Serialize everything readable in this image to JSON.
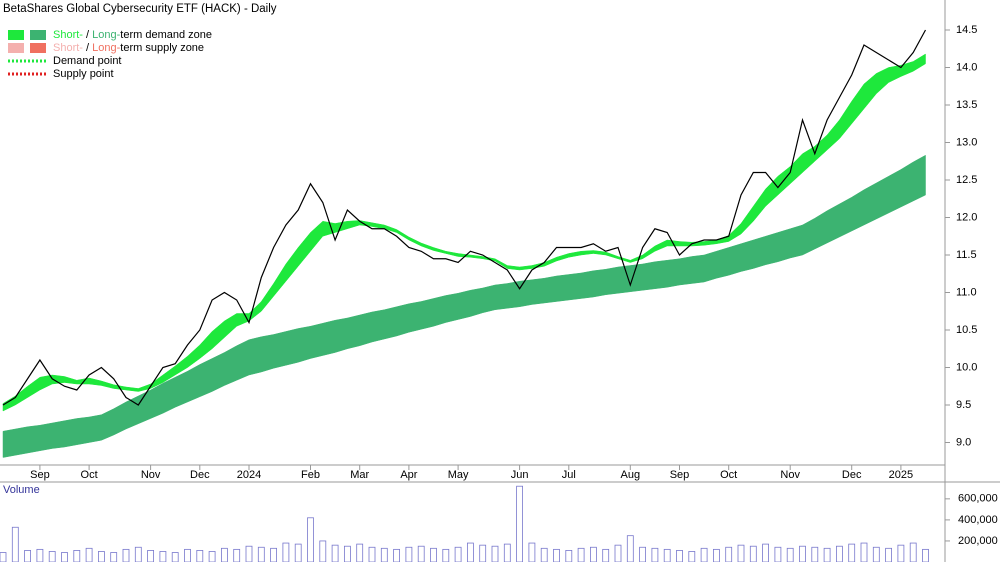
{
  "chart_data": {
    "type": "line",
    "title": "BetaShares Global Cybersecurity ETF (HACK) - Daily",
    "categories": [
      null,
      null,
      null,
      "Sep",
      null,
      null,
      null,
      "Oct",
      null,
      null,
      null,
      null,
      "Nov",
      null,
      null,
      null,
      "Dec",
      null,
      null,
      null,
      "2024",
      null,
      null,
      null,
      null,
      "Feb",
      null,
      null,
      null,
      "Mar",
      null,
      null,
      null,
      "Apr",
      null,
      null,
      null,
      "May",
      null,
      null,
      null,
      null,
      "Jun",
      null,
      null,
      null,
      "Jul",
      null,
      null,
      null,
      null,
      "Aug",
      null,
      null,
      null,
      "Sep",
      null,
      null,
      null,
      "Oct",
      null,
      null,
      null,
      null,
      "Nov",
      null,
      null,
      null,
      null,
      "Dec",
      null,
      null,
      null,
      "2025",
      null,
      null
    ],
    "values": [
      9.5,
      9.6,
      9.85,
      10.1,
      9.85,
      9.75,
      9.7,
      9.9,
      10.0,
      9.85,
      9.6,
      9.5,
      9.75,
      10.0,
      10.05,
      10.3,
      10.5,
      10.9,
      11.0,
      10.9,
      10.6,
      11.2,
      11.6,
      11.9,
      12.1,
      12.45,
      12.2,
      11.7,
      12.1,
      11.95,
      11.85,
      11.85,
      11.75,
      11.6,
      11.55,
      11.45,
      11.45,
      11.4,
      11.55,
      11.5,
      11.4,
      11.3,
      11.05,
      11.3,
      11.4,
      11.6,
      11.6,
      11.6,
      11.65,
      11.55,
      11.6,
      11.1,
      11.6,
      11.85,
      11.8,
      11.5,
      11.65,
      11.7,
      11.7,
      11.75,
      12.3,
      12.6,
      12.6,
      12.4,
      12.6,
      13.3,
      12.85,
      13.3,
      13.6,
      13.9,
      14.3,
      14.2,
      14.1,
      14.0,
      14.2,
      14.5
    ],
    "color": "#000000",
    "bands": [
      {
        "color": "#3cb371",
        "lower": [
          8.8,
          8.83,
          8.86,
          8.89,
          8.92,
          8.94,
          8.97,
          9.0,
          9.03,
          9.1,
          9.18,
          9.25,
          9.32,
          9.39,
          9.47,
          9.54,
          9.61,
          9.68,
          9.76,
          9.83,
          9.9,
          9.94,
          9.99,
          10.03,
          10.07,
          10.12,
          10.16,
          10.2,
          10.25,
          10.29,
          10.34,
          10.38,
          10.42,
          10.47,
          10.51,
          10.55,
          10.6,
          10.64,
          10.68,
          10.73,
          10.77,
          10.79,
          10.81,
          10.84,
          10.86,
          10.88,
          10.9,
          10.92,
          10.94,
          10.97,
          10.99,
          11.01,
          11.03,
          11.05,
          11.07,
          11.1,
          11.12,
          11.14,
          11.19,
          11.23,
          11.28,
          11.32,
          11.37,
          11.41,
          11.46,
          11.5,
          11.58,
          11.66,
          11.74,
          11.82,
          11.9,
          11.98,
          12.06,
          12.14,
          12.22,
          12.3
        ],
        "upper": [
          9.15,
          9.18,
          9.21,
          9.23,
          9.26,
          9.29,
          9.32,
          9.34,
          9.37,
          9.45,
          9.54,
          9.62,
          9.7,
          9.79,
          9.87,
          9.95,
          10.04,
          10.12,
          10.2,
          10.29,
          10.37,
          10.41,
          10.44,
          10.48,
          10.52,
          10.55,
          10.59,
          10.63,
          10.66,
          10.7,
          10.74,
          10.77,
          10.81,
          10.85,
          10.88,
          10.92,
          10.96,
          10.99,
          11.03,
          11.06,
          11.1,
          11.12,
          11.15,
          11.17,
          11.19,
          11.22,
          11.24,
          11.26,
          11.29,
          11.31,
          11.34,
          11.36,
          11.38,
          11.41,
          11.43,
          11.45,
          11.48,
          11.5,
          11.55,
          11.6,
          11.65,
          11.7,
          11.75,
          11.8,
          11.85,
          11.9,
          11.99,
          12.09,
          12.18,
          12.27,
          12.37,
          12.46,
          12.55,
          12.64,
          12.74,
          12.83
        ]
      },
      {
        "color": "#1ee83c",
        "lower": [
          9.42,
          9.5,
          9.6,
          9.7,
          9.78,
          9.8,
          9.78,
          9.78,
          9.76,
          9.72,
          9.7,
          9.68,
          9.72,
          9.8,
          9.9,
          10.0,
          10.12,
          10.25,
          10.4,
          10.55,
          10.62,
          10.75,
          10.95,
          11.15,
          11.35,
          11.55,
          11.75,
          11.8,
          11.85,
          11.9,
          11.88,
          11.85,
          11.8,
          11.7,
          11.62,
          11.56,
          11.52,
          11.48,
          11.47,
          11.45,
          11.42,
          11.32,
          11.3,
          11.32,
          11.35,
          11.42,
          11.47,
          11.5,
          11.52,
          11.5,
          11.45,
          11.4,
          11.45,
          11.55,
          11.62,
          11.62,
          11.62,
          11.63,
          11.65,
          11.68,
          11.78,
          11.95,
          12.15,
          12.3,
          12.45,
          12.6,
          12.75,
          12.9,
          13.05,
          13.25,
          13.45,
          13.65,
          13.8,
          13.88,
          13.95,
          14.05
        ],
        "upper": [
          9.52,
          9.62,
          9.75,
          9.87,
          9.9,
          9.88,
          9.83,
          9.86,
          9.82,
          9.77,
          9.74,
          9.72,
          9.78,
          9.9,
          10.02,
          10.15,
          10.3,
          10.48,
          10.62,
          10.72,
          10.72,
          10.88,
          11.12,
          11.38,
          11.6,
          11.8,
          11.95,
          11.92,
          11.95,
          11.96,
          11.93,
          11.9,
          11.84,
          11.74,
          11.66,
          11.6,
          11.55,
          11.52,
          11.5,
          11.48,
          11.45,
          11.36,
          11.34,
          11.36,
          11.4,
          11.47,
          11.52,
          11.55,
          11.56,
          11.54,
          11.48,
          11.43,
          11.5,
          11.62,
          11.7,
          11.68,
          11.67,
          11.68,
          11.7,
          11.76,
          11.92,
          12.15,
          12.38,
          12.55,
          12.68,
          12.85,
          12.95,
          13.1,
          13.3,
          13.55,
          13.78,
          13.92,
          14.0,
          14.03,
          14.08,
          14.18
        ]
      }
    ],
    "ylim": [
      8.7,
      14.9
    ],
    "yticks": [
      {
        "value": 9,
        "label": "9.0"
      },
      9.5,
      {
        "value": 10,
        "label": "10.0"
      },
      10.5,
      {
        "value": 11,
        "label": "11.0"
      },
      11.5,
      {
        "value": 12,
        "label": "12.0"
      },
      12.5,
      {
        "value": 13,
        "label": "13.0"
      },
      13.5,
      {
        "value": 14,
        "label": "14.0"
      },
      14.5
    ],
    "legend": [
      {
        "swatches": [
          "#1ee83c",
          "#3cb371"
        ],
        "parts": [
          {
            "text": "Short-",
            "color": "#1ee83c"
          },
          {
            "text": " / "
          },
          {
            "text": "Long-",
            "color": "#3cb371"
          },
          {
            "text": "term demand zone"
          }
        ]
      },
      {
        "swatches": [
          "#f4b0ae",
          "#f07060"
        ],
        "parts": [
          {
            "text": "Short-",
            "color": "#f4b0ae"
          },
          {
            "text": " / "
          },
          {
            "text": "Long-",
            "color": "#f07060"
          },
          {
            "text": "term supply zone"
          }
        ]
      },
      {
        "dotted": "#1ee83c",
        "parts": [
          {
            "text": "Demand point"
          }
        ]
      },
      {
        "dotted": "#e02020",
        "parts": [
          {
            "text": "Supply point"
          }
        ]
      }
    ],
    "volume": {
      "title": "Volume",
      "color": "#7777cc",
      "ylim": [
        0,
        760000
      ],
      "yticks": [
        {
          "value": 200000,
          "label": "200,000"
        },
        {
          "value": 400000,
          "label": "400,000"
        },
        {
          "value": 600000,
          "label": "600,000"
        }
      ],
      "values": [
        90000,
        330000,
        110000,
        120000,
        100000,
        90000,
        110000,
        130000,
        100000,
        90000,
        120000,
        140000,
        110000,
        100000,
        90000,
        120000,
        110000,
        100000,
        130000,
        120000,
        150000,
        140000,
        130000,
        180000,
        170000,
        420000,
        200000,
        160000,
        150000,
        170000,
        140000,
        130000,
        120000,
        140000,
        150000,
        130000,
        120000,
        140000,
        180000,
        160000,
        150000,
        170000,
        720000,
        180000,
        130000,
        120000,
        110000,
        130000,
        140000,
        120000,
        160000,
        250000,
        140000,
        130000,
        120000,
        110000,
        100000,
        130000,
        120000,
        140000,
        160000,
        150000,
        170000,
        140000,
        130000,
        150000,
        140000,
        130000,
        150000,
        170000,
        180000,
        140000,
        130000,
        160000,
        180000,
        120000
      ]
    }
  }
}
